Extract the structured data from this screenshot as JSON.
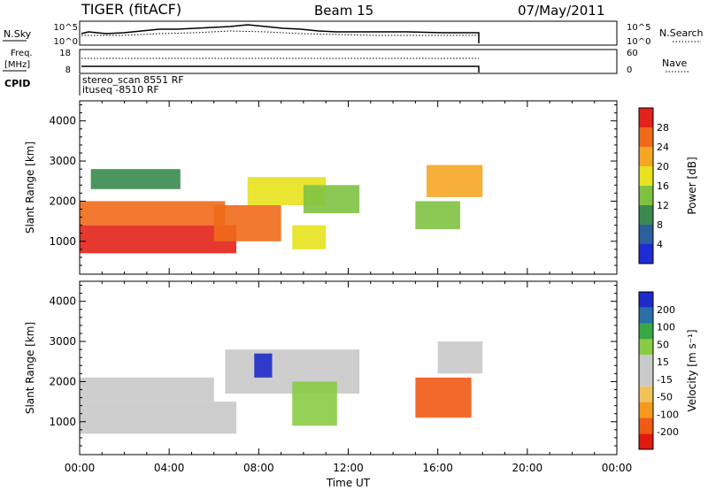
{
  "header": {
    "radar": "TIGER (fitACF)",
    "beam": "Beam 15",
    "date": "07/May/2011"
  },
  "strip_labels": {
    "nsky": "N.Sky",
    "nsearch": "N.Search",
    "freq": "Freq.",
    "freq_unit": "[MHz]",
    "nave": "Nave",
    "cpid": "CPID",
    "nsky_ticks": [
      "10^5",
      "10^0"
    ],
    "nsearch_ticks": [
      "10^5",
      "10^0"
    ],
    "freq_ticks": [
      "18",
      "8"
    ],
    "nave_ticks": [
      "60",
      "0"
    ]
  },
  "cpid_lines": [
    "stereo_scan 8551 RF",
    "ituseq -8510 RF"
  ],
  "colors": {
    "power_scale": [
      "#1f2bd6",
      "#2c5f9e",
      "#3a8a4f",
      "#7fc241",
      "#e6e21d",
      "#f5a623",
      "#f06a1a",
      "#e2231a"
    ],
    "velocity_scale": [
      "#e0190f",
      "#f05a14",
      "#f59a1e",
      "#f0c35a",
      "#c9c9c9",
      "#c9c9c9",
      "#8acb45",
      "#36a844",
      "#2a6fa8",
      "#1d2bc9"
    ]
  },
  "chart_data": [
    {
      "type": "heatmap",
      "title": "Power",
      "xlabel": "Time UT",
      "ylabel": "Slant Range [km]",
      "xlim": [
        "00:00",
        "24:00"
      ],
      "ylim": [
        180,
        4500
      ],
      "x_ticks": [
        "00:00",
        "04:00",
        "08:00",
        "12:00",
        "16:00",
        "20:00",
        "00:00"
      ],
      "y_ticks": [
        1000,
        2000,
        3000,
        4000
      ],
      "colorbar": {
        "label": "Power [dB]",
        "ticks": [
          "4",
          "8",
          "12",
          "16",
          "20",
          "24",
          "28"
        ]
      },
      "regions": [
        {
          "x": [
            0.0,
            7.0
          ],
          "y": [
            700,
            1400
          ],
          "value": 28
        },
        {
          "x": [
            0.0,
            6.5
          ],
          "y": [
            1400,
            2000
          ],
          "value": 22
        },
        {
          "x": [
            0.5,
            4.5
          ],
          "y": [
            2300,
            2800
          ],
          "value": 10
        },
        {
          "x": [
            6.0,
            9.0
          ],
          "y": [
            1000,
            1900
          ],
          "value": 24
        },
        {
          "x": [
            7.5,
            11.0
          ],
          "y": [
            1900,
            2600
          ],
          "value": 18
        },
        {
          "x": [
            10.0,
            12.5
          ],
          "y": [
            1700,
            2400
          ],
          "value": 14
        },
        {
          "x": [
            9.5,
            11.0
          ],
          "y": [
            800,
            1400
          ],
          "value": 16
        },
        {
          "x": [
            15.5,
            18.0
          ],
          "y": [
            2100,
            2900
          ],
          "value": 20
        },
        {
          "x": [
            15.0,
            17.0
          ],
          "y": [
            1300,
            2000
          ],
          "value": 14
        }
      ]
    },
    {
      "type": "heatmap",
      "title": "Velocity",
      "xlabel": "Time UT",
      "ylabel": "Slant Range [km]",
      "xlim": [
        "00:00",
        "24:00"
      ],
      "ylim": [
        180,
        4500
      ],
      "x_ticks": [
        "00:00",
        "04:00",
        "08:00",
        "12:00",
        "16:00",
        "20:00",
        "00:00"
      ],
      "y_ticks": [
        1000,
        2000,
        3000,
        4000
      ],
      "colorbar": {
        "label": "Velocity [m s⁻¹]",
        "ticks": [
          "-200",
          "-100",
          "-50",
          "-15",
          "15",
          "50",
          "100",
          "200"
        ]
      },
      "regions": [
        {
          "x": [
            0.0,
            7.0
          ],
          "y": [
            700,
            1500
          ],
          "value": 0
        },
        {
          "x": [
            0.0,
            6.0
          ],
          "y": [
            1500,
            2100
          ],
          "value": -40
        },
        {
          "x": [
            6.5,
            12.5
          ],
          "y": [
            1700,
            2800
          ],
          "value": 0
        },
        {
          "x": [
            7.8,
            8.6
          ],
          "y": [
            2100,
            2700
          ],
          "value": 200
        },
        {
          "x": [
            9.5,
            11.5
          ],
          "y": [
            900,
            2000
          ],
          "value": 60
        },
        {
          "x": [
            15.0,
            17.5
          ],
          "y": [
            1100,
            2100
          ],
          "value": -150
        },
        {
          "x": [
            16.0,
            18.0
          ],
          "y": [
            2200,
            3000
          ],
          "value": 0
        }
      ]
    }
  ]
}
